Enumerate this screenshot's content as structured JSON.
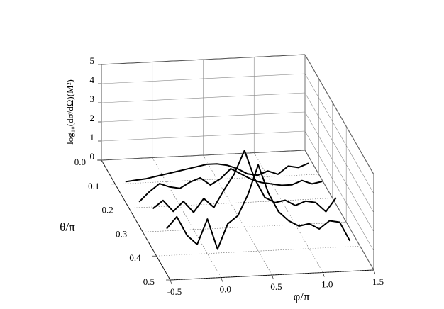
{
  "chart_data": {
    "type": "line3d",
    "xlabel": "φ/π",
    "zlabel": "θ/π",
    "ylabel": "log₁₀(dσ/dΩ)(M²)",
    "xlim": [
      -0.5,
      1.5
    ],
    "xticks": [
      -0.5,
      {
        "value": 0,
        "label": "0.0"
      },
      0.5,
      {
        "value": 1,
        "label": "1.0"
      },
      1.5
    ],
    "zlim": [
      0,
      0.5
    ],
    "zticks": [
      {
        "value": 0,
        "label": "0.0"
      },
      0.1,
      0.2,
      0.3,
      0.4,
      0.5
    ],
    "ylim": [
      0,
      5
    ],
    "yticks": [
      0,
      1,
      2,
      3,
      4,
      5
    ],
    "grid": true,
    "x": [
      -0.4,
      -0.3,
      -0.2,
      -0.1,
      0,
      0.1,
      0.2,
      0.3,
      0.4,
      0.5,
      0.6,
      0.7,
      0.8,
      0.9,
      1.0,
      1.1,
      1.2,
      1.3,
      1.4
    ],
    "series": [
      {
        "z": 0.1,
        "color": "#000000",
        "values": [
          0.1,
          0.15,
          0.2,
          0.3,
          0.4,
          0.5,
          0.6,
          0.7,
          0.8,
          0.8,
          0.7,
          0.5,
          0.2,
          0.1,
          0.3,
          0.1,
          0.5,
          0.4,
          0.6
        ]
      },
      {
        "z": 0.2,
        "color": "#000000",
        "values": [
          0.3,
          0.8,
          1.2,
          1.0,
          0.9,
          1.2,
          1.4,
          1.0,
          1.3,
          1.8,
          1.5,
          1.2,
          1.0,
          0.9,
          0.8,
          0.8,
          1.0,
          0.8,
          0.9
        ]
      },
      {
        "z": 0.3,
        "color": "#000000",
        "values": [
          1.2,
          1.6,
          1.0,
          1.5,
          0.9,
          1.6,
          1.1,
          2.0,
          2.8,
          4.0,
          2.5,
          1.5,
          1.2,
          1.3,
          1.0,
          1.2,
          1.1,
          0.6,
          1.3
        ]
      },
      {
        "z": 0.4,
        "color": "#000000",
        "values": [
          1.4,
          2.0,
          1.0,
          0.5,
          1.8,
          0.2,
          1.5,
          1.9,
          3.0,
          4.5,
          3.0,
          2.0,
          1.5,
          1.2,
          1.3,
          1.0,
          1.4,
          1.3,
          0.3
        ]
      }
    ]
  }
}
